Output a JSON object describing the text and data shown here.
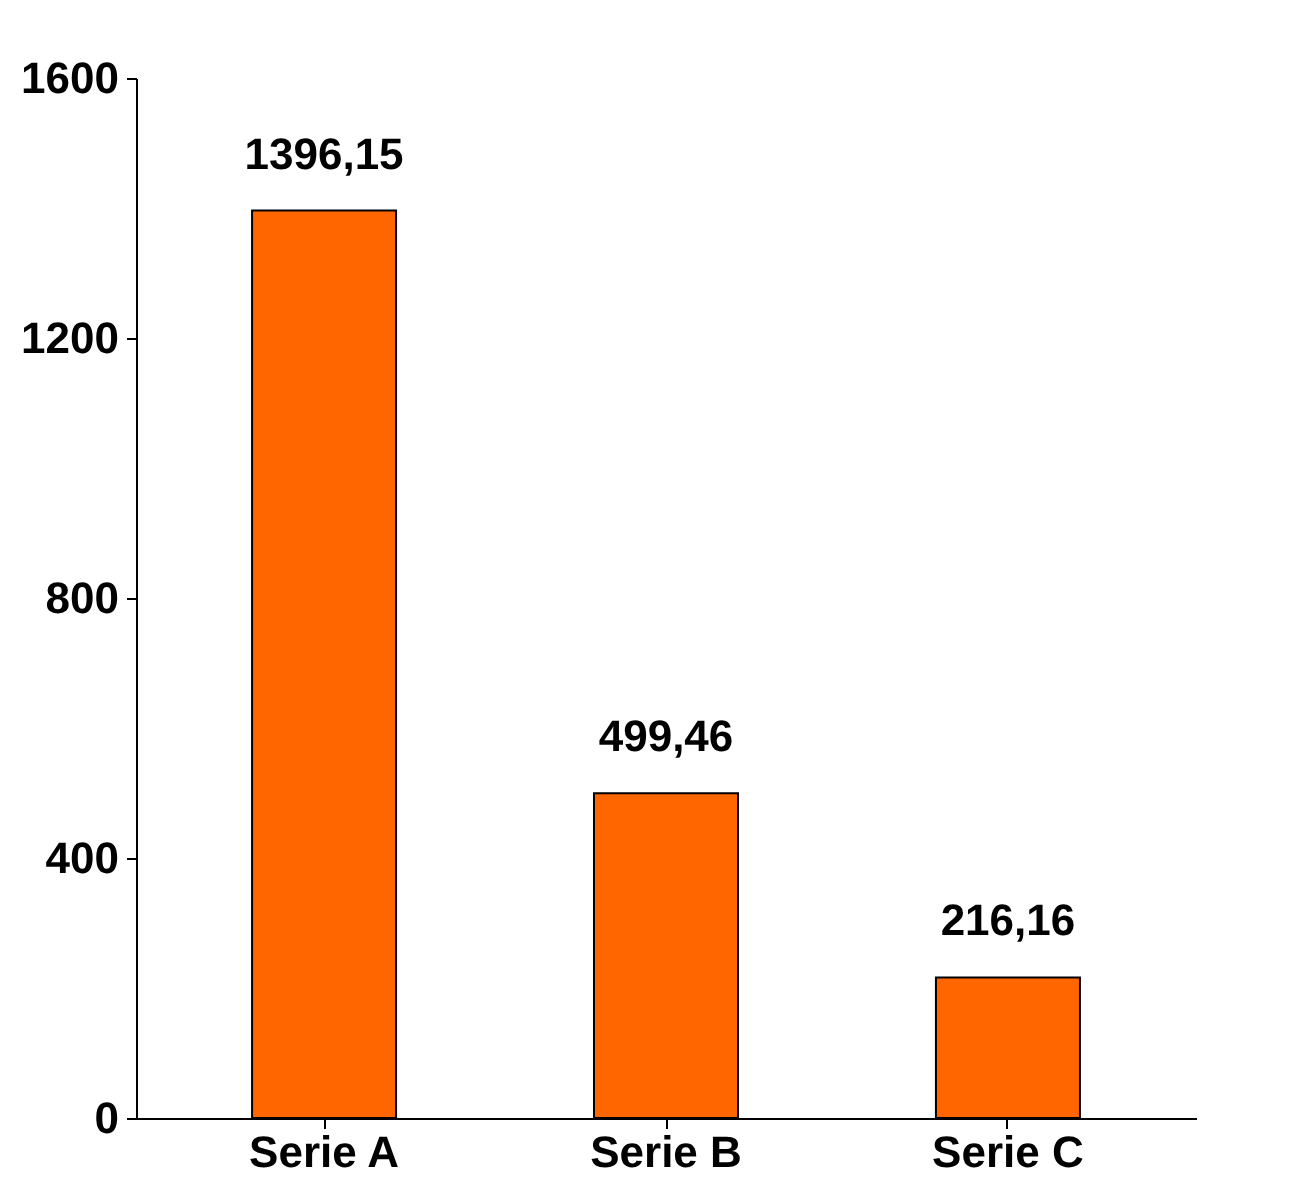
{
  "chart_data": {
    "type": "bar",
    "categories": [
      "Serie A",
      "Serie B",
      "Serie C"
    ],
    "values": [
      1396.15,
      499.46,
      216.16
    ],
    "color": "#ff6600",
    "value_labels": [
      "1396,15",
      "499,46",
      "216,16"
    ],
    "ylim": [
      0,
      1600
    ],
    "yticks": [
      0,
      400,
      800,
      1200,
      1600
    ],
    "grid": false
  }
}
